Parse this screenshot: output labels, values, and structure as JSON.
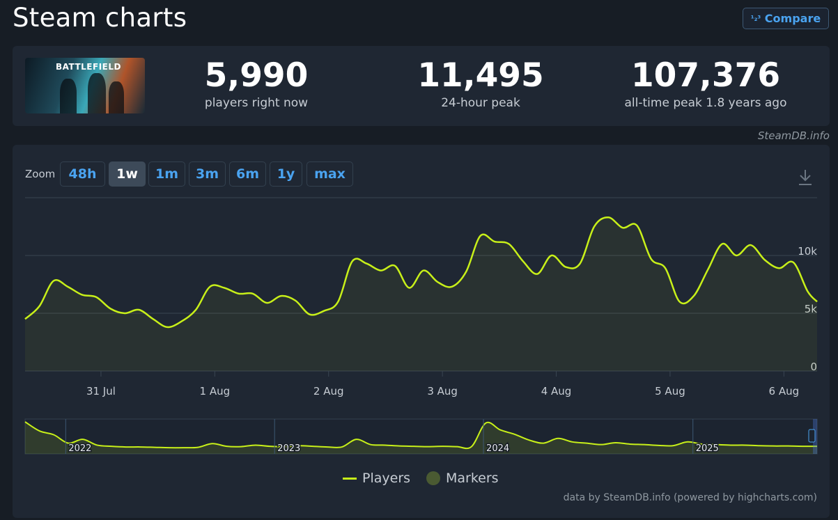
{
  "page": {
    "title": "Steam charts",
    "compare_label": "Compare",
    "compare_icon": "1/2/3"
  },
  "game": {
    "logo_text": "BATTLEFIELD"
  },
  "stats": [
    {
      "value": "5,990",
      "label": "players right now"
    },
    {
      "value": "11,495",
      "label": "24-hour peak"
    },
    {
      "value": "107,376",
      "label": "all-time peak 1.8 years ago"
    }
  ],
  "credit_top": "SteamDB.info",
  "zoom": {
    "label": "Zoom",
    "options": [
      "48h",
      "1w",
      "1m",
      "3m",
      "6m",
      "1y",
      "max"
    ],
    "active": "1w"
  },
  "legend": {
    "players": "Players",
    "markers": "Markers"
  },
  "credit_bottom": "data by SteamDB.info (powered by highcharts.com)",
  "colors": {
    "line": "#c8f019",
    "background": "#1f2733",
    "grid": "#3a4552",
    "accent": "#4aa3f0",
    "marker": "#4a5a32"
  },
  "chart_data": {
    "type": "line",
    "series_name": "Players",
    "ylim": [
      0,
      15000
    ],
    "yticks": [
      {
        "value": 0,
        "label": "0"
      },
      {
        "value": 5000,
        "label": "5k"
      },
      {
        "value": 10000,
        "label": "10k"
      }
    ],
    "x_ticks": [
      {
        "value": "2025-07-31",
        "label": "31 Jul"
      },
      {
        "value": "2025-08-01",
        "label": "1 Aug"
      },
      {
        "value": "2025-08-02",
        "label": "2 Aug"
      },
      {
        "value": "2025-08-03",
        "label": "3 Aug"
      },
      {
        "value": "2025-08-04",
        "label": "4 Aug"
      },
      {
        "value": "2025-08-05",
        "label": "5 Aug"
      },
      {
        "value": "2025-08-06",
        "label": "6 Aug"
      }
    ],
    "x_range": [
      "2025-07-30 08:00",
      "2025-08-06 07:00"
    ],
    "x": [
      "2025-07-30 08:00",
      "2025-07-30 11:00",
      "2025-07-30 14:00",
      "2025-07-30 17:00",
      "2025-07-30 20:00",
      "2025-07-30 23:00",
      "2025-07-31 02:00",
      "2025-07-31 05:00",
      "2025-07-31 08:00",
      "2025-07-31 11:00",
      "2025-07-31 14:00",
      "2025-07-31 17:00",
      "2025-07-31 20:00",
      "2025-07-31 23:00",
      "2025-08-01 02:00",
      "2025-08-01 05:00",
      "2025-08-01 08:00",
      "2025-08-01 11:00",
      "2025-08-01 14:00",
      "2025-08-01 17:00",
      "2025-08-01 20:00",
      "2025-08-01 23:00",
      "2025-08-02 02:00",
      "2025-08-02 05:00",
      "2025-08-02 08:00",
      "2025-08-02 11:00",
      "2025-08-02 14:00",
      "2025-08-02 17:00",
      "2025-08-02 20:00",
      "2025-08-02 23:00",
      "2025-08-03 02:00",
      "2025-08-03 05:00",
      "2025-08-03 08:00",
      "2025-08-03 11:00",
      "2025-08-03 14:00",
      "2025-08-03 17:00",
      "2025-08-03 20:00",
      "2025-08-03 23:00",
      "2025-08-04 02:00",
      "2025-08-04 05:00",
      "2025-08-04 08:00",
      "2025-08-04 11:00",
      "2025-08-04 14:00",
      "2025-08-04 17:00",
      "2025-08-04 20:00",
      "2025-08-04 23:00",
      "2025-08-05 02:00",
      "2025-08-05 05:00",
      "2025-08-05 08:00",
      "2025-08-05 11:00",
      "2025-08-05 14:00",
      "2025-08-05 17:00",
      "2025-08-05 20:00",
      "2025-08-05 23:00",
      "2025-08-06 02:00",
      "2025-08-06 05:00",
      "2025-08-06 07:00"
    ],
    "values": [
      4500,
      5600,
      7800,
      7300,
      6600,
      6400,
      5400,
      5000,
      5300,
      4500,
      3800,
      4300,
      5300,
      7300,
      7200,
      6700,
      6700,
      5900,
      6500,
      6100,
      4900,
      5200,
      6000,
      9500,
      9300,
      8700,
      9100,
      7200,
      8700,
      7700,
      7300,
      8600,
      11700,
      11200,
      11000,
      9500,
      8400,
      10000,
      9000,
      9300,
      12500,
      13300,
      12400,
      12600,
      9700,
      8900,
      6000,
      6500,
      8800,
      11000,
      10000,
      10900,
      9600,
      8900,
      9400,
      6900,
      6000
    ],
    "overview": {
      "labels": [
        "2022",
        "2023",
        "2024",
        "2025"
      ],
      "x_range": [
        "2021-10-22",
        "2025-08-06"
      ],
      "values": [
        107376,
        55000,
        38000,
        12000,
        22000,
        8000,
        6000,
        5000,
        5000,
        4500,
        4000,
        4000,
        4500,
        11000,
        6000,
        5500,
        8000,
        6000,
        5500,
        7000,
        6000,
        5000,
        5000,
        22000,
        9000,
        8000,
        6500,
        6000,
        5500,
        6000,
        5500,
        5500,
        100000,
        60000,
        40000,
        20000,
        12000,
        25000,
        15000,
        12000,
        9000,
        13000,
        10000,
        9000,
        7500,
        7000,
        15000,
        10000,
        9000,
        8000,
        8000,
        7000,
        6500,
        6500,
        6000,
        5990
      ]
    }
  }
}
